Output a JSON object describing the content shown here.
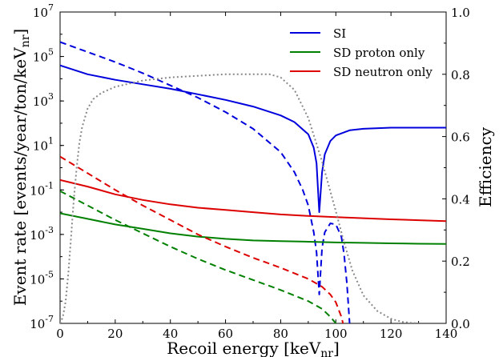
{
  "chart_data": {
    "type": "line",
    "xlabel": "Recoil energy [keV",
    "xlabel_sub": "nr",
    "xlabel_close": "]",
    "ylabel": "Event rate [events/year/ton/keV",
    "ylabel_sub": "nr",
    "ylabel_close": "]",
    "y2label": "Efficiency",
    "xlim": [
      0,
      140
    ],
    "ylim_log10": [
      -7,
      7
    ],
    "y2lim": [
      0.0,
      1.0
    ],
    "xticks": [
      "0",
      "20",
      "40",
      "60",
      "80",
      "100",
      "120",
      "140"
    ],
    "yticks": [
      {
        "base": "10",
        "exp": "-7"
      },
      {
        "base": "10",
        "exp": "-5"
      },
      {
        "base": "10",
        "exp": "-3"
      },
      {
        "base": "10",
        "exp": "-1"
      },
      {
        "base": "10",
        "exp": "1"
      },
      {
        "base": "10",
        "exp": "3"
      },
      {
        "base": "10",
        "exp": "5"
      },
      {
        "base": "10",
        "exp": "7"
      }
    ],
    "y2ticks": [
      "0.0",
      "0.2",
      "0.4",
      "0.6",
      "0.8",
      "1.0"
    ],
    "legend": {
      "placement": "top-right",
      "entries": [
        {
          "label": "SI",
          "color": "#0000dd"
        },
        {
          "label": "SD proton only",
          "color": "#008000"
        },
        {
          "label": "SD neutron only",
          "color": "#dd0000"
        }
      ]
    },
    "series": [
      {
        "name": "SI",
        "color": "#0000dd",
        "style": "solid",
        "axis": "left",
        "scale": "log10",
        "x": [
          0,
          10,
          20,
          30,
          40,
          50,
          60,
          70,
          80,
          85,
          90,
          92,
          93,
          94,
          95,
          96,
          98,
          100,
          105,
          110,
          120,
          130,
          140
        ],
        "y": [
          4.6,
          4.2,
          3.95,
          3.75,
          3.55,
          3.3,
          3.05,
          2.75,
          2.35,
          2.05,
          1.5,
          0.9,
          0.2,
          -2.0,
          -0.2,
          0.6,
          1.2,
          1.45,
          1.68,
          1.75,
          1.8,
          1.8,
          1.8
        ]
      },
      {
        "name": "SI",
        "color": "#0000dd",
        "style": "dashed",
        "axis": "left",
        "scale": "log10",
        "x": [
          0,
          10,
          20,
          30,
          40,
          50,
          60,
          70,
          80,
          85,
          88,
          90,
          92,
          93,
          94,
          95,
          96,
          98,
          100,
          102,
          103,
          104,
          105
        ],
        "y": [
          5.65,
          5.2,
          4.75,
          4.25,
          3.7,
          3.15,
          2.5,
          1.75,
          0.7,
          -0.2,
          -1.0,
          -1.7,
          -2.9,
          -3.8,
          -5.7,
          -3.6,
          -2.9,
          -2.5,
          -2.55,
          -3.1,
          -3.9,
          -5.2,
          -7.0
        ]
      },
      {
        "name": "SD proton only",
        "color": "#008000",
        "style": "solid",
        "axis": "left",
        "scale": "log10",
        "x": [
          0,
          10,
          20,
          30,
          40,
          50,
          60,
          70,
          80,
          90,
          100,
          110,
          120,
          130,
          140
        ],
        "y": [
          -2.05,
          -2.3,
          -2.55,
          -2.75,
          -2.95,
          -3.1,
          -3.2,
          -3.27,
          -3.3,
          -3.33,
          -3.36,
          -3.38,
          -3.4,
          -3.42,
          -3.43
        ]
      },
      {
        "name": "SD proton only",
        "color": "#008000",
        "style": "dashed",
        "axis": "left",
        "scale": "log10",
        "x": [
          0,
          10,
          20,
          30,
          40,
          50,
          60,
          70,
          80,
          90,
          95,
          98,
          100,
          101
        ],
        "y": [
          -1.05,
          -1.7,
          -2.35,
          -2.95,
          -3.55,
          -4.1,
          -4.6,
          -5.05,
          -5.5,
          -6.0,
          -6.35,
          -6.7,
          -7.0,
          -7.2
        ]
      },
      {
        "name": "SD neutron only",
        "color": "#dd0000",
        "style": "solid",
        "axis": "left",
        "scale": "log10",
        "x": [
          0,
          10,
          20,
          30,
          40,
          50,
          60,
          70,
          80,
          90,
          100,
          110,
          120,
          130,
          140
        ],
        "y": [
          -0.55,
          -0.85,
          -1.2,
          -1.45,
          -1.65,
          -1.8,
          -1.9,
          -2.0,
          -2.1,
          -2.17,
          -2.22,
          -2.27,
          -2.32,
          -2.36,
          -2.4
        ]
      },
      {
        "name": "SD neutron only",
        "color": "#dd0000",
        "style": "dashed",
        "axis": "left",
        "scale": "log10",
        "x": [
          0,
          10,
          20,
          30,
          40,
          50,
          60,
          70,
          80,
          90,
          95,
          98,
          100,
          102,
          103
        ],
        "y": [
          0.5,
          -0.25,
          -1.0,
          -1.7,
          -2.35,
          -3.0,
          -3.55,
          -4.05,
          -4.5,
          -5.0,
          -5.35,
          -5.7,
          -6.05,
          -6.7,
          -7.2
        ]
      },
      {
        "name": "Efficiency",
        "color": "#888888",
        "style": "dotted",
        "axis": "right",
        "scale": "linear",
        "x": [
          0,
          1,
          2,
          3,
          4,
          5,
          6,
          7,
          8,
          10,
          12,
          15,
          20,
          25,
          30,
          40,
          50,
          60,
          70,
          76,
          80,
          85,
          90,
          95,
          100,
          103,
          106,
          110,
          115,
          120,
          124,
          127,
          130
        ],
        "y": [
          0.0,
          0.02,
          0.07,
          0.16,
          0.28,
          0.4,
          0.5,
          0.58,
          0.63,
          0.69,
          0.72,
          0.74,
          0.76,
          0.77,
          0.78,
          0.79,
          0.795,
          0.8,
          0.8,
          0.8,
          0.79,
          0.75,
          0.66,
          0.52,
          0.36,
          0.26,
          0.17,
          0.09,
          0.04,
          0.015,
          0.005,
          0.002,
          0.0
        ]
      }
    ]
  }
}
